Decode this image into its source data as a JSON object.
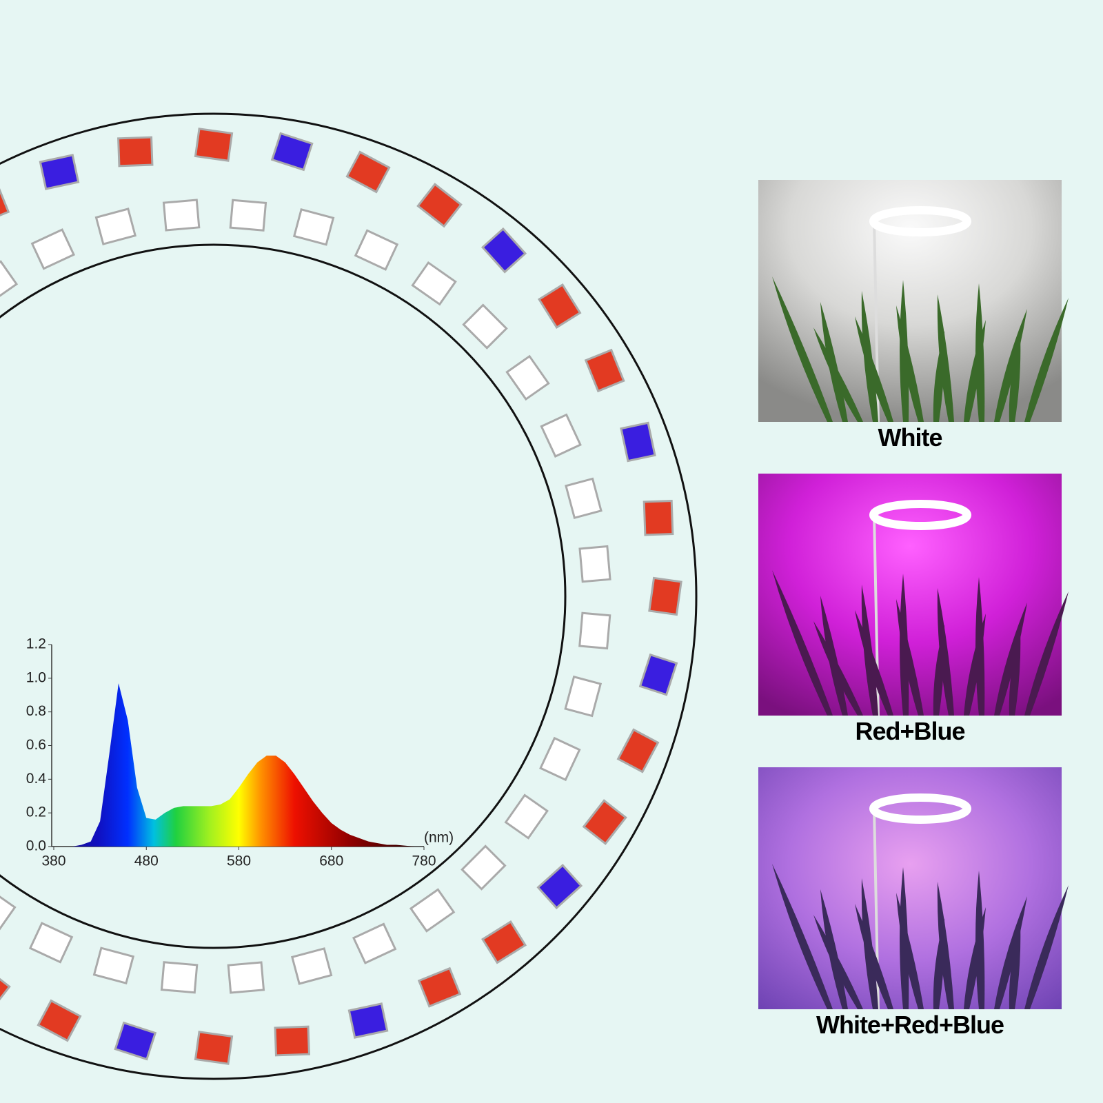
{
  "chart_data": {
    "type": "area",
    "x_label": "(nm)",
    "x": [
      380,
      390,
      400,
      410,
      420,
      430,
      440,
      450,
      460,
      470,
      480,
      490,
      500,
      510,
      520,
      530,
      540,
      550,
      560,
      570,
      580,
      590,
      600,
      610,
      620,
      630,
      640,
      650,
      660,
      670,
      680,
      690,
      700,
      710,
      720,
      730,
      740,
      750,
      760,
      770,
      780
    ],
    "values": [
      0,
      0,
      0,
      0.01,
      0.03,
      0.15,
      0.55,
      0.97,
      0.75,
      0.35,
      0.17,
      0.16,
      0.2,
      0.23,
      0.24,
      0.24,
      0.24,
      0.24,
      0.25,
      0.28,
      0.35,
      0.43,
      0.5,
      0.54,
      0.54,
      0.5,
      0.43,
      0.35,
      0.27,
      0.2,
      0.14,
      0.1,
      0.07,
      0.05,
      0.03,
      0.02,
      0.01,
      0.01,
      0.005,
      0,
      0
    ],
    "xlim": [
      380,
      780
    ],
    "xticks": [
      380,
      480,
      580,
      680,
      780
    ],
    "ylim": [
      0,
      1.2
    ],
    "yticks": [
      {
        "value": 0,
        "label": "0.0"
      },
      0.2,
      0.4,
      0.6,
      0.8,
      {
        "value": 1,
        "label": "1.0"
      },
      1.2
    ]
  },
  "captions": [
    "White",
    "Red+Blue",
    "White+Red+Blue"
  ]
}
